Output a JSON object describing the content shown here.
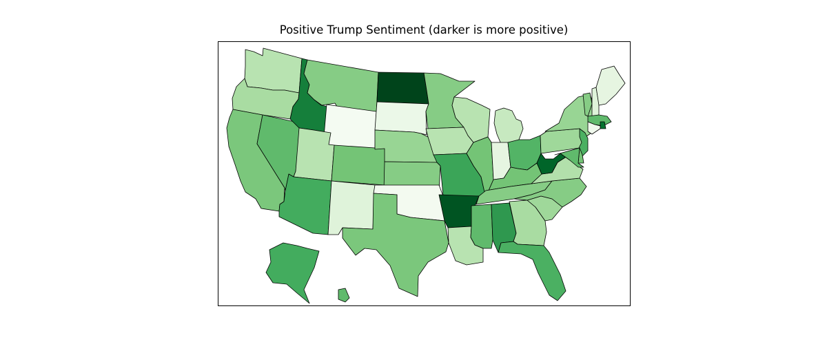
{
  "chart_data": {
    "type": "choropleth",
    "title": "Positive Trump Sentiment (darker is more positive)",
    "colormap": "Greens",
    "states": [
      {
        "id": "WA",
        "level": 0.3
      },
      {
        "id": "OR",
        "level": 0.35
      },
      {
        "id": "CA",
        "level": 0.48
      },
      {
        "id": "NV",
        "level": 0.55
      },
      {
        "id": "ID",
        "level": 0.8
      },
      {
        "id": "MT",
        "level": 0.45
      },
      {
        "id": "WY",
        "level": 0.02
      },
      {
        "id": "UT",
        "level": 0.3
      },
      {
        "id": "CO",
        "level": 0.5
      },
      {
        "id": "AZ",
        "level": 0.62
      },
      {
        "id": "NM",
        "level": 0.15
      },
      {
        "id": "ND",
        "level": 1.0
      },
      {
        "id": "SD",
        "level": 0.08
      },
      {
        "id": "NE",
        "level": 0.4
      },
      {
        "id": "KS",
        "level": 0.45
      },
      {
        "id": "OK",
        "level": 0.03
      },
      {
        "id": "TX",
        "level": 0.48
      },
      {
        "id": "MN",
        "level": 0.45
      },
      {
        "id": "IA",
        "level": 0.3
      },
      {
        "id": "MO",
        "level": 0.65
      },
      {
        "id": "AR",
        "level": 0.95
      },
      {
        "id": "LA",
        "level": 0.3
      },
      {
        "id": "WI",
        "level": 0.3
      },
      {
        "id": "IL",
        "level": 0.5
      },
      {
        "id": "MI",
        "level": 0.25
      },
      {
        "id": "IN",
        "level": 0.12
      },
      {
        "id": "OH",
        "level": 0.58
      },
      {
        "id": "KY",
        "level": 0.5
      },
      {
        "id": "TN",
        "level": 0.45
      },
      {
        "id": "MS",
        "level": 0.55
      },
      {
        "id": "AL",
        "level": 0.7
      },
      {
        "id": "GA",
        "level": 0.35
      },
      {
        "id": "FL",
        "level": 0.6
      },
      {
        "id": "SC",
        "level": 0.38
      },
      {
        "id": "NC",
        "level": 0.45
      },
      {
        "id": "VA",
        "level": 0.32
      },
      {
        "id": "WV",
        "level": 0.9
      },
      {
        "id": "PA",
        "level": 0.38
      },
      {
        "id": "NY",
        "level": 0.4
      },
      {
        "id": "VT",
        "level": 0.45
      },
      {
        "id": "NH",
        "level": 0.15
      },
      {
        "id": "ME",
        "level": 0.12
      },
      {
        "id": "MA",
        "level": 0.55
      },
      {
        "id": "RI",
        "level": 0.85
      },
      {
        "id": "CT",
        "level": 0.05
      },
      {
        "id": "NJ",
        "level": 0.6
      },
      {
        "id": "DE",
        "level": 0.5
      },
      {
        "id": "MD",
        "level": 0.55
      },
      {
        "id": "AK",
        "level": 0.62
      },
      {
        "id": "HI",
        "level": 0.55
      }
    ]
  }
}
